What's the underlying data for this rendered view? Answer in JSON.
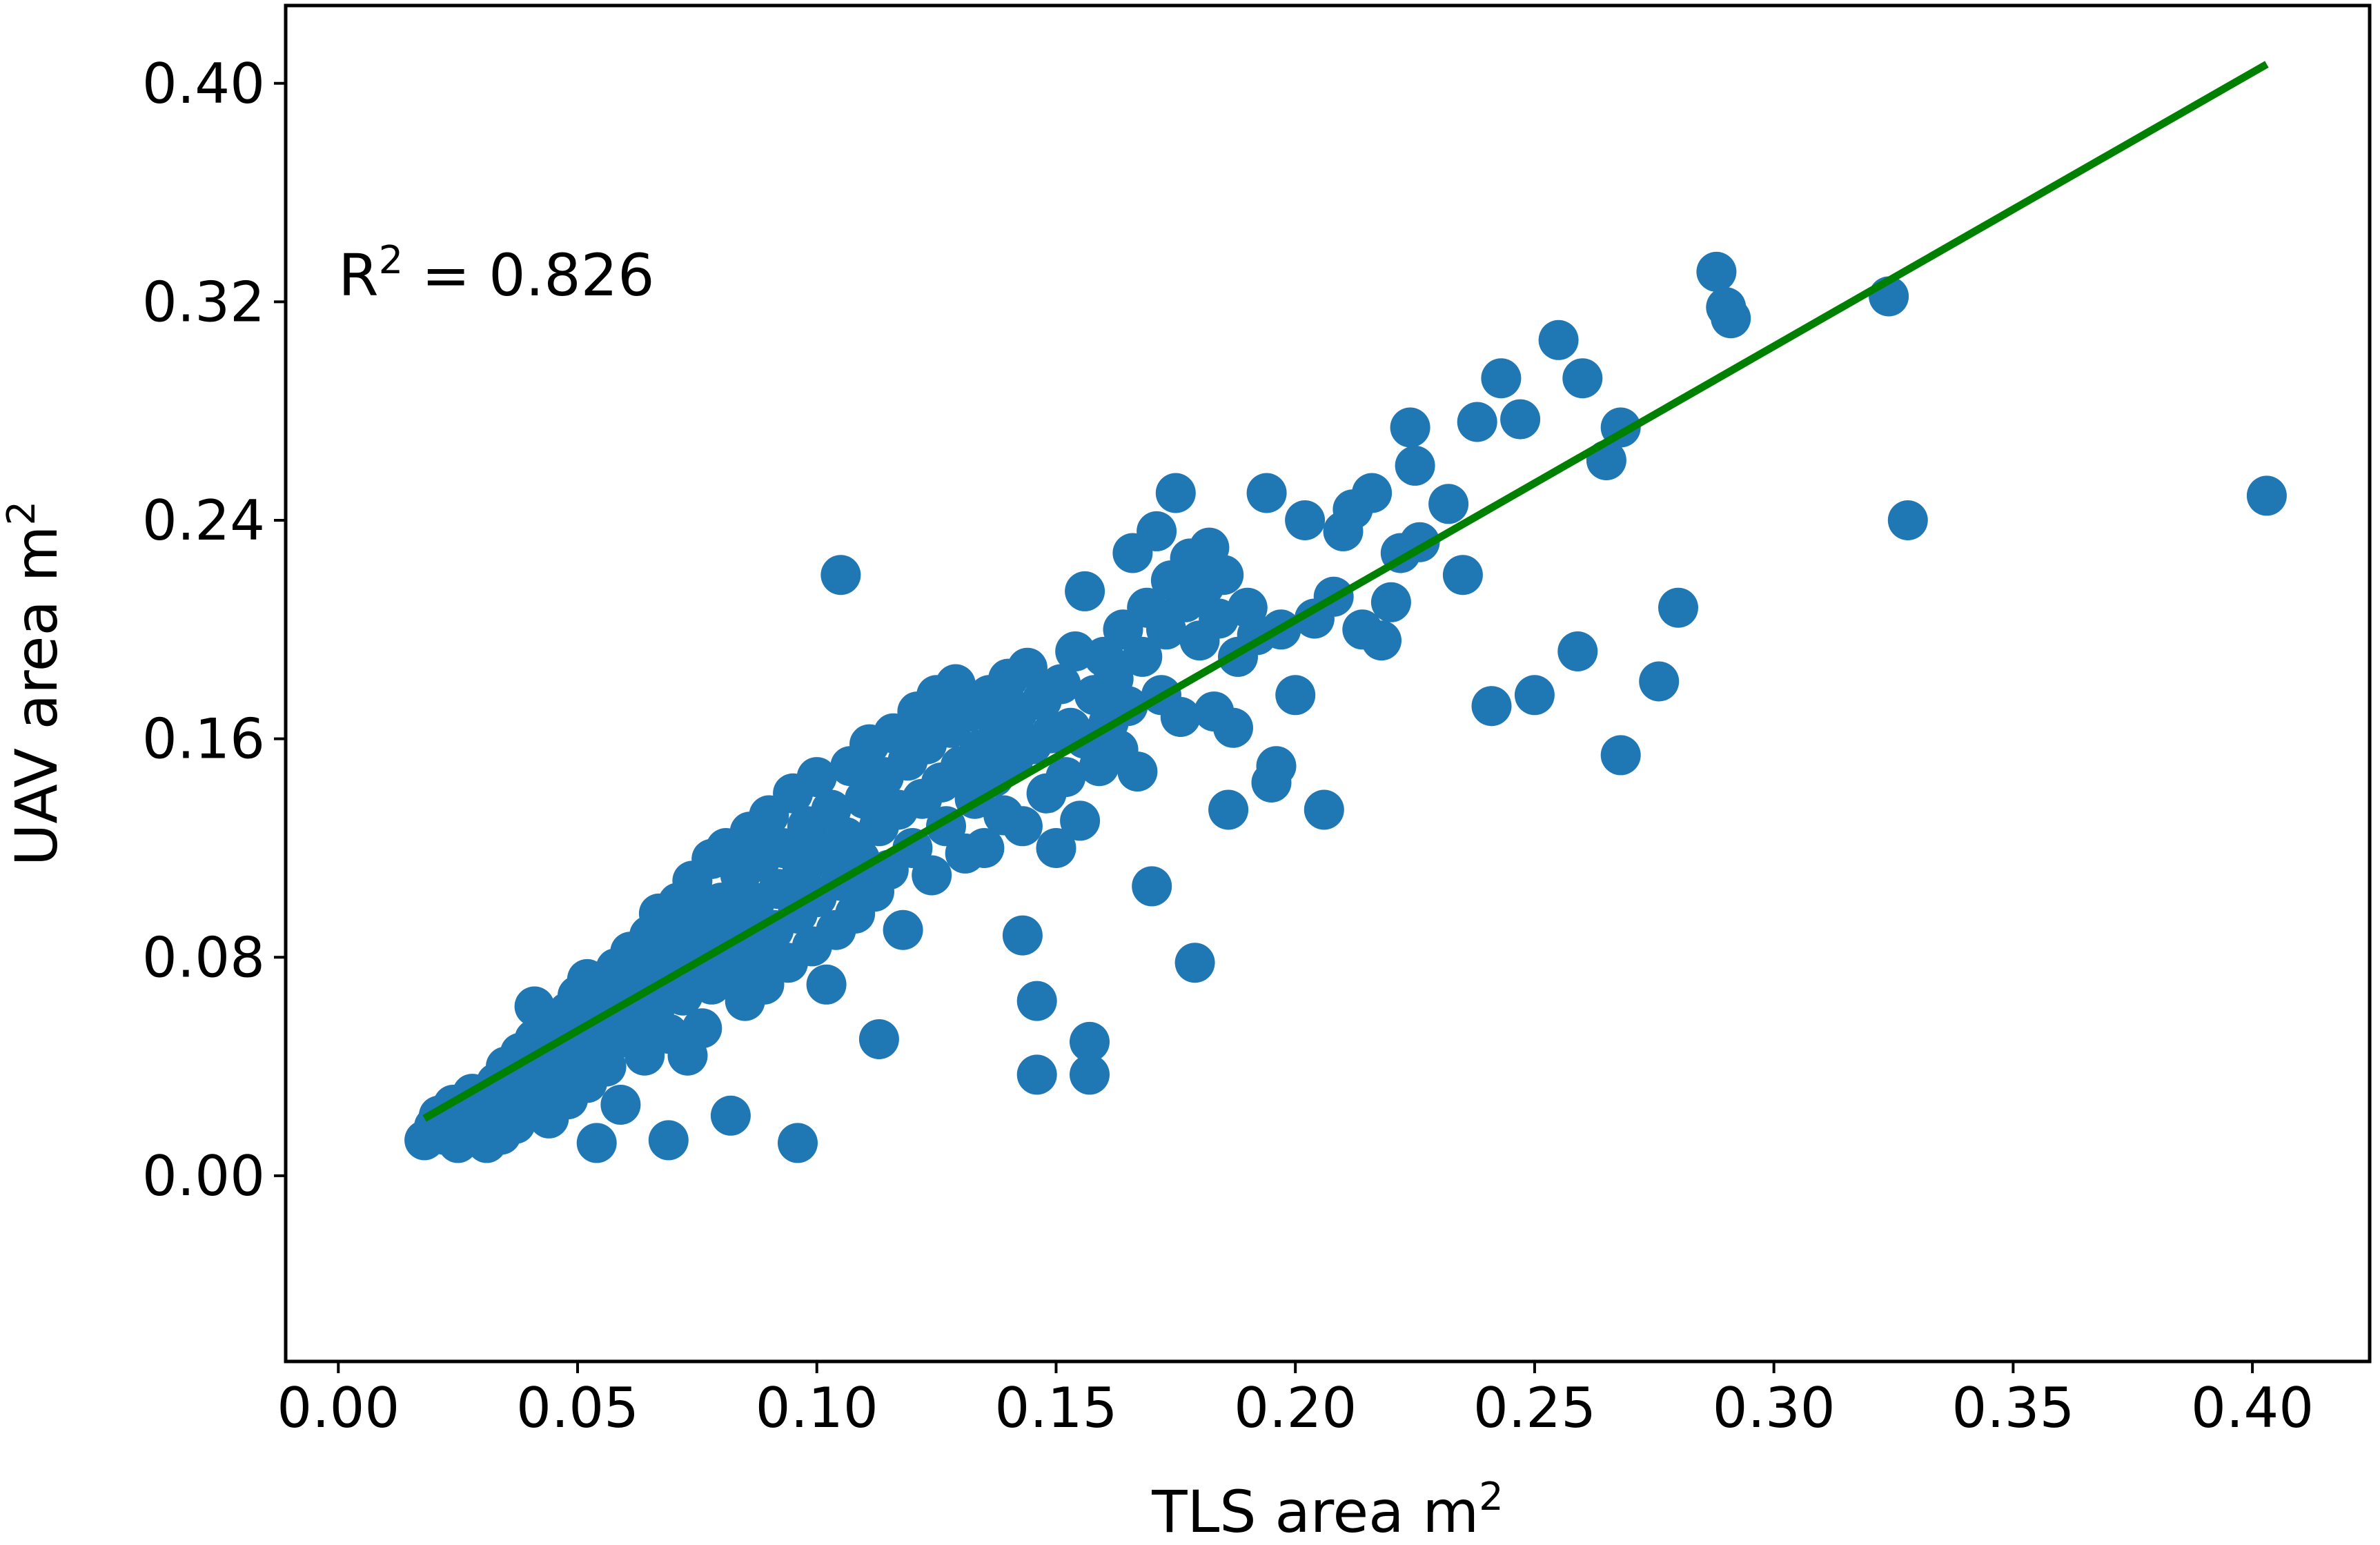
{
  "chart_data": {
    "type": "scatter",
    "xlabel": "TLS area m",
    "xlabel_sup": "2",
    "ylabel": "UAV area m",
    "ylabel_sup": "2",
    "annotation": {
      "prefix": "R",
      "sup": "2",
      "suffix": " = 0.826",
      "x": 0.0,
      "y": 0.33
    },
    "xlim": [
      -0.011,
      0.4245
    ],
    "ylim": [
      -0.068,
      0.4285
    ],
    "xticks": [
      0.0,
      0.05,
      0.1,
      0.15,
      0.2,
      0.25,
      0.3,
      0.35,
      0.4
    ],
    "xtick_labels": [
      "0.00",
      "0.05",
      "0.10",
      "0.15",
      "0.20",
      "0.25",
      "0.30",
      "0.35",
      "0.40"
    ],
    "yticks": [
      0.0,
      0.08,
      0.16,
      0.24,
      0.32,
      0.4
    ],
    "ytick_labels": [
      "0.00",
      "0.08",
      "0.16",
      "0.24",
      "0.32",
      "0.40"
    ],
    "grid": false,
    "colors": {
      "points": "#1f77b4",
      "fit_line": "#008000",
      "frame": "#000000"
    },
    "fit_line": {
      "x": [
        0.018,
        0.403
      ],
      "y": [
        0.021,
        0.407
      ]
    },
    "series": [
      {
        "points": [
          [
            0.018,
            0.013
          ],
          [
            0.02,
            0.018
          ],
          [
            0.021,
            0.022
          ],
          [
            0.022,
            0.015
          ],
          [
            0.023,
            0.02
          ],
          [
            0.024,
            0.026
          ],
          [
            0.025,
            0.012
          ],
          [
            0.026,
            0.019
          ],
          [
            0.027,
            0.024
          ],
          [
            0.028,
            0.03
          ],
          [
            0.029,
            0.016
          ],
          [
            0.03,
            0.022
          ],
          [
            0.031,
            0.012
          ],
          [
            0.032,
            0.028
          ],
          [
            0.033,
            0.02
          ],
          [
            0.033,
            0.034
          ],
          [
            0.034,
            0.015
          ],
          [
            0.035,
            0.04
          ],
          [
            0.036,
            0.026
          ],
          [
            0.037,
            0.019
          ],
          [
            0.038,
            0.032
          ],
          [
            0.038,
            0.045
          ],
          [
            0.039,
            0.025
          ],
          [
            0.04,
            0.038
          ],
          [
            0.041,
            0.05
          ],
          [
            0.041,
            0.062
          ],
          [
            0.042,
            0.03
          ],
          [
            0.043,
            0.044
          ],
          [
            0.044,
            0.021
          ],
          [
            0.045,
            0.055
          ],
          [
            0.046,
            0.036
          ],
          [
            0.047,
            0.048
          ],
          [
            0.048,
            0.06
          ],
          [
            0.048,
            0.028
          ],
          [
            0.049,
            0.042
          ],
          [
            0.05,
            0.066
          ],
          [
            0.051,
            0.052
          ],
          [
            0.052,
            0.034
          ],
          [
            0.052,
            0.072
          ],
          [
            0.053,
            0.046
          ],
          [
            0.054,
            0.012
          ],
          [
            0.054,
            0.058
          ],
          [
            0.055,
            0.064
          ],
          [
            0.056,
            0.04
          ],
          [
            0.057,
            0.07
          ],
          [
            0.058,
            0.05
          ],
          [
            0.058,
            0.076
          ],
          [
            0.059,
            0.026
          ],
          [
            0.06,
            0.062
          ],
          [
            0.061,
            0.082
          ],
          [
            0.062,
            0.055
          ],
          [
            0.063,
            0.068
          ],
          [
            0.064,
            0.044
          ],
          [
            0.065,
            0.088
          ],
          [
            0.065,
            0.075
          ],
          [
            0.066,
            0.06
          ],
          [
            0.067,
            0.096
          ],
          [
            0.068,
            0.07
          ],
          [
            0.069,
            0.013
          ],
          [
            0.069,
            0.052
          ],
          [
            0.07,
            0.082
          ],
          [
            0.071,
            0.1
          ],
          [
            0.072,
            0.066
          ],
          [
            0.073,
            0.09
          ],
          [
            0.073,
            0.044
          ],
          [
            0.074,
            0.108
          ],
          [
            0.075,
            0.078
          ],
          [
            0.076,
            0.054
          ],
          [
            0.077,
            0.095
          ],
          [
            0.078,
            0.116
          ],
          [
            0.078,
            0.07
          ],
          [
            0.079,
            0.086
          ],
          [
            0.08,
            0.1
          ],
          [
            0.081,
            0.12
          ],
          [
            0.082,
            0.022
          ],
          [
            0.082,
            0.076
          ],
          [
            0.083,
            0.092
          ],
          [
            0.084,
            0.11
          ],
          [
            0.085,
            0.064
          ],
          [
            0.086,
            0.126
          ],
          [
            0.087,
            0.082
          ],
          [
            0.087,
            0.1
          ],
          [
            0.088,
            0.115
          ],
          [
            0.089,
            0.07
          ],
          [
            0.09,
            0.132
          ],
          [
            0.091,
            0.09
          ],
          [
            0.092,
            0.105
          ],
          [
            0.093,
            0.12
          ],
          [
            0.094,
            0.078
          ],
          [
            0.095,
            0.14
          ],
          [
            0.096,
            0.012
          ],
          [
            0.096,
            0.096
          ],
          [
            0.097,
            0.112
          ],
          [
            0.098,
            0.128
          ],
          [
            0.099,
            0.084
          ],
          [
            0.1,
            0.146
          ],
          [
            0.1,
            0.102
          ],
          [
            0.101,
            0.118
          ],
          [
            0.102,
            0.07
          ],
          [
            0.103,
            0.134
          ],
          [
            0.104,
            0.09
          ],
          [
            0.105,
            0.22
          ],
          [
            0.105,
            0.108
          ],
          [
            0.106,
            0.124
          ],
          [
            0.107,
            0.15
          ],
          [
            0.108,
            0.096
          ],
          [
            0.109,
            0.116
          ],
          [
            0.11,
            0.138
          ],
          [
            0.111,
            0.158
          ],
          [
            0.112,
            0.104
          ],
          [
            0.113,
            0.05
          ],
          [
            0.113,
            0.128
          ],
          [
            0.114,
            0.146
          ],
          [
            0.115,
            0.112
          ],
          [
            0.116,
            0.162
          ],
          [
            0.117,
            0.134
          ],
          [
            0.118,
            0.09
          ],
          [
            0.119,
            0.152
          ],
          [
            0.12,
            0.12
          ],
          [
            0.121,
            0.17
          ],
          [
            0.122,
            0.138
          ],
          [
            0.123,
            0.158
          ],
          [
            0.124,
            0.11
          ],
          [
            0.125,
            0.176
          ],
          [
            0.126,
            0.144
          ],
          [
            0.127,
            0.128
          ],
          [
            0.128,
            0.164
          ],
          [
            0.129,
            0.18
          ],
          [
            0.13,
            0.15
          ],
          [
            0.131,
            0.118
          ],
          [
            0.132,
            0.17
          ],
          [
            0.133,
            0.138
          ],
          [
            0.134,
            0.156
          ],
          [
            0.135,
            0.12
          ],
          [
            0.136,
            0.176
          ],
          [
            0.137,
            0.146
          ],
          [
            0.138,
            0.164
          ],
          [
            0.139,
            0.132
          ],
          [
            0.14,
            0.182
          ],
          [
            0.141,
            0.152
          ],
          [
            0.142,
            0.17
          ],
          [
            0.143,
            0.088
          ],
          [
            0.143,
            0.128
          ],
          [
            0.144,
            0.186
          ],
          [
            0.145,
            0.158
          ],
          [
            0.146,
            0.037
          ],
          [
            0.146,
            0.064
          ],
          [
            0.147,
            0.174
          ],
          [
            0.148,
            0.14
          ],
          [
            0.149,
            0.162
          ],
          [
            0.15,
            0.12
          ],
          [
            0.151,
            0.18
          ],
          [
            0.152,
            0.146
          ],
          [
            0.153,
            0.164
          ],
          [
            0.154,
            0.192
          ],
          [
            0.155,
            0.13
          ],
          [
            0.156,
            0.214
          ],
          [
            0.156,
            0.16
          ],
          [
            0.157,
            0.037
          ],
          [
            0.157,
            0.049
          ],
          [
            0.158,
            0.176
          ],
          [
            0.159,
            0.15
          ],
          [
            0.16,
            0.19
          ],
          [
            0.161,
            0.166
          ],
          [
            0.162,
            0.182
          ],
          [
            0.163,
            0.156
          ],
          [
            0.164,
            0.2
          ],
          [
            0.165,
            0.172
          ],
          [
            0.166,
            0.228
          ],
          [
            0.167,
            0.148
          ],
          [
            0.168,
            0.19
          ],
          [
            0.169,
            0.208
          ],
          [
            0.17,
            0.106
          ],
          [
            0.171,
            0.236
          ],
          [
            0.172,
            0.176
          ],
          [
            0.173,
            0.2
          ],
          [
            0.174,
            0.218
          ],
          [
            0.175,
            0.25
          ],
          [
            0.176,
            0.168
          ],
          [
            0.177,
            0.21
          ],
          [
            0.178,
            0.226
          ],
          [
            0.179,
            0.078
          ],
          [
            0.18,
            0.196
          ],
          [
            0.181,
            0.216
          ],
          [
            0.182,
            0.23
          ],
          [
            0.183,
            0.17
          ],
          [
            0.184,
            0.204
          ],
          [
            0.185,
            0.22
          ],
          [
            0.186,
            0.134
          ],
          [
            0.187,
            0.164
          ],
          [
            0.188,
            0.19
          ],
          [
            0.19,
            0.208
          ],
          [
            0.192,
            0.198
          ],
          [
            0.194,
            0.25
          ],
          [
            0.195,
            0.144
          ],
          [
            0.196,
            0.15
          ],
          [
            0.197,
            0.2
          ],
          [
            0.2,
            0.176
          ],
          [
            0.202,
            0.24
          ],
          [
            0.204,
            0.204
          ],
          [
            0.206,
            0.134
          ],
          [
            0.208,
            0.212
          ],
          [
            0.21,
            0.236
          ],
          [
            0.212,
            0.244
          ],
          [
            0.214,
            0.2
          ],
          [
            0.216,
            0.25
          ],
          [
            0.218,
            0.196
          ],
          [
            0.22,
            0.21
          ],
          [
            0.222,
            0.228
          ],
          [
            0.224,
            0.274
          ],
          [
            0.225,
            0.26
          ],
          [
            0.226,
            0.232
          ],
          [
            0.232,
            0.246
          ],
          [
            0.235,
            0.22
          ],
          [
            0.238,
            0.276
          ],
          [
            0.241,
            0.172
          ],
          [
            0.243,
            0.292
          ],
          [
            0.247,
            0.277
          ],
          [
            0.25,
            0.176
          ],
          [
            0.255,
            0.306
          ],
          [
            0.259,
            0.192
          ],
          [
            0.26,
            0.292
          ],
          [
            0.265,
            0.262
          ],
          [
            0.268,
            0.154
          ],
          [
            0.268,
            0.274
          ],
          [
            0.276,
            0.181
          ],
          [
            0.28,
            0.208
          ],
          [
            0.288,
            0.331
          ],
          [
            0.29,
            0.318
          ],
          [
            0.291,
            0.314
          ],
          [
            0.324,
            0.322
          ],
          [
            0.328,
            0.24
          ],
          [
            0.403,
            0.249
          ]
        ]
      }
    ]
  }
}
